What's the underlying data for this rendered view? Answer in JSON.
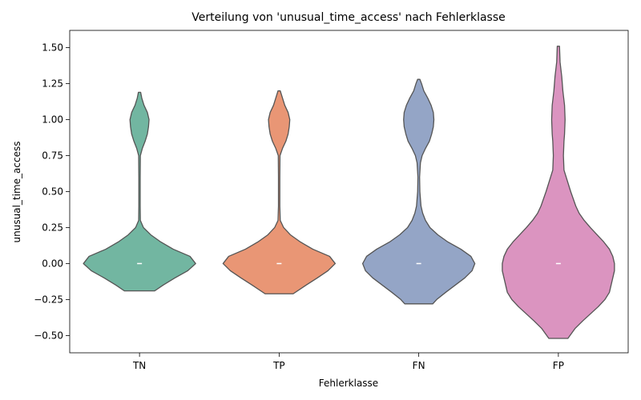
{
  "chart_data": {
    "type": "violin",
    "title": "Verteilung von 'unusual_time_access' nach Fehlerklasse",
    "xlabel": "Fehlerklasse",
    "ylabel": "unusual_time_access",
    "ylim": [
      -0.62,
      1.62
    ],
    "yticks": [
      "−0.50",
      "−0.25",
      "0.00",
      "0.25",
      "0.50",
      "0.75",
      "1.00",
      "1.25",
      "1.50"
    ],
    "ytick_values": [
      -0.5,
      -0.25,
      0.0,
      0.25,
      0.5,
      0.75,
      1.0,
      1.25,
      1.5
    ],
    "categories": [
      "TN",
      "TP",
      "FN",
      "FP"
    ],
    "grid": false,
    "legend": "none",
    "median_marker_color": "#ffffff",
    "outline_color": "#555555",
    "series": [
      {
        "category": "TN",
        "color": "#72b6a1",
        "median": 0.0,
        "y_min": -0.19,
        "y_max": 1.19,
        "density_profile": [
          [
            -0.19,
            0.27
          ],
          [
            -0.15,
            0.42
          ],
          [
            -0.1,
            0.63
          ],
          [
            -0.05,
            0.86
          ],
          [
            0.0,
            1.0
          ],
          [
            0.05,
            0.9
          ],
          [
            0.1,
            0.6
          ],
          [
            0.15,
            0.38
          ],
          [
            0.2,
            0.2
          ],
          [
            0.25,
            0.07
          ],
          [
            0.3,
            0.015
          ],
          [
            0.4,
            0.012
          ],
          [
            0.6,
            0.012
          ],
          [
            0.75,
            0.015
          ],
          [
            0.8,
            0.05
          ],
          [
            0.85,
            0.1
          ],
          [
            0.9,
            0.14
          ],
          [
            0.95,
            0.16
          ],
          [
            1.0,
            0.17
          ],
          [
            1.05,
            0.14
          ],
          [
            1.1,
            0.08
          ],
          [
            1.15,
            0.04
          ],
          [
            1.19,
            0.02
          ]
        ]
      },
      {
        "category": "TP",
        "color": "#e99675",
        "median": 0.0,
        "y_min": -0.21,
        "y_max": 1.2,
        "density_profile": [
          [
            -0.21,
            0.25
          ],
          [
            -0.15,
            0.48
          ],
          [
            -0.1,
            0.68
          ],
          [
            -0.05,
            0.87
          ],
          [
            0.0,
            1.0
          ],
          [
            0.05,
            0.9
          ],
          [
            0.1,
            0.6
          ],
          [
            0.15,
            0.38
          ],
          [
            0.2,
            0.2
          ],
          [
            0.25,
            0.08
          ],
          [
            0.3,
            0.02
          ],
          [
            0.4,
            0.012
          ],
          [
            0.6,
            0.012
          ],
          [
            0.75,
            0.015
          ],
          [
            0.8,
            0.06
          ],
          [
            0.85,
            0.12
          ],
          [
            0.9,
            0.16
          ],
          [
            0.95,
            0.18
          ],
          [
            1.0,
            0.19
          ],
          [
            1.05,
            0.16
          ],
          [
            1.1,
            0.1
          ],
          [
            1.15,
            0.06
          ],
          [
            1.2,
            0.02
          ]
        ]
      },
      {
        "category": "FN",
        "color": "#94a5c6",
        "median": 0.0,
        "y_min": -0.28,
        "y_max": 1.28,
        "density_profile": [
          [
            -0.28,
            0.25
          ],
          [
            -0.25,
            0.32
          ],
          [
            -0.2,
            0.48
          ],
          [
            -0.15,
            0.65
          ],
          [
            -0.1,
            0.82
          ],
          [
            -0.05,
            0.95
          ],
          [
            0.0,
            1.0
          ],
          [
            0.05,
            0.93
          ],
          [
            0.1,
            0.75
          ],
          [
            0.15,
            0.52
          ],
          [
            0.2,
            0.34
          ],
          [
            0.25,
            0.2
          ],
          [
            0.3,
            0.12
          ],
          [
            0.35,
            0.07
          ],
          [
            0.4,
            0.04
          ],
          [
            0.5,
            0.02
          ],
          [
            0.6,
            0.015
          ],
          [
            0.7,
            0.03
          ],
          [
            0.75,
            0.06
          ],
          [
            0.8,
            0.12
          ],
          [
            0.85,
            0.19
          ],
          [
            0.9,
            0.23
          ],
          [
            0.95,
            0.26
          ],
          [
            1.0,
            0.27
          ],
          [
            1.05,
            0.26
          ],
          [
            1.1,
            0.22
          ],
          [
            1.15,
            0.16
          ],
          [
            1.2,
            0.09
          ],
          [
            1.25,
            0.05
          ],
          [
            1.28,
            0.02
          ]
        ]
      },
      {
        "category": "FP",
        "color": "#db94c0",
        "median": 0.0,
        "y_min": -0.52,
        "y_max": 1.51,
        "density_profile": [
          [
            -0.52,
            0.17
          ],
          [
            -0.45,
            0.3
          ],
          [
            -0.4,
            0.43
          ],
          [
            -0.35,
            0.57
          ],
          [
            -0.3,
            0.71
          ],
          [
            -0.25,
            0.83
          ],
          [
            -0.2,
            0.91
          ],
          [
            -0.1,
            0.97
          ],
          [
            -0.05,
            1.0
          ],
          [
            0.0,
            1.0
          ],
          [
            0.05,
            0.97
          ],
          [
            0.1,
            0.91
          ],
          [
            0.15,
            0.81
          ],
          [
            0.2,
            0.69
          ],
          [
            0.25,
            0.57
          ],
          [
            0.3,
            0.46
          ],
          [
            0.35,
            0.37
          ],
          [
            0.4,
            0.31
          ],
          [
            0.5,
            0.22
          ],
          [
            0.6,
            0.14
          ],
          [
            0.65,
            0.1
          ],
          [
            0.75,
            0.09
          ],
          [
            0.85,
            0.1
          ],
          [
            0.9,
            0.11
          ],
          [
            1.0,
            0.12
          ],
          [
            1.1,
            0.11
          ],
          [
            1.2,
            0.08
          ],
          [
            1.3,
            0.06
          ],
          [
            1.4,
            0.03
          ],
          [
            1.51,
            0.02
          ]
        ]
      }
    ]
  }
}
